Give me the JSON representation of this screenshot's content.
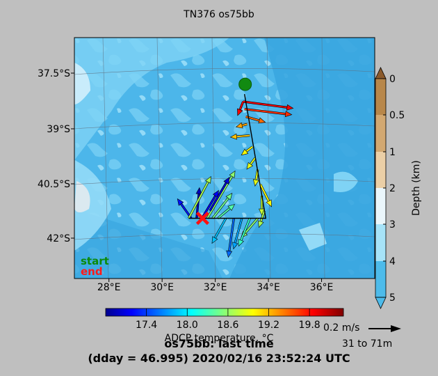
{
  "title": "TN376 os75bb",
  "chart_data": {
    "type": "map-vector",
    "map": {
      "lon_ticks": [
        "28°E",
        "30°E",
        "32°E",
        "34°E",
        "36°E"
      ],
      "lat_ticks": [
        "37.5°S",
        "39°S",
        "40.5°S",
        "42°S"
      ],
      "xlim": [
        26.7,
        38.0
      ],
      "ylim": [
        -43.0,
        -36.6
      ]
    },
    "start_label": "start",
    "end_label": "end",
    "start_color": "#008000",
    "end_color": "#ff0000",
    "track": [
      [
        33.1,
        -38.1
      ],
      [
        33.9,
        -41.4
      ],
      [
        31.0,
        -41.4
      ]
    ],
    "vectors": [
      {
        "lon": 33.05,
        "lat": -38.3,
        "u": 0.9,
        "v": -0.12,
        "temp": 19.9
      },
      {
        "lon": 33.05,
        "lat": -38.3,
        "u": -0.1,
        "v": -0.25,
        "temp": 19.9
      },
      {
        "lon": 33.1,
        "lat": -38.5,
        "u": 0.85,
        "v": -0.1,
        "temp": 19.7
      },
      {
        "lon": 33.15,
        "lat": -38.7,
        "u": 0.35,
        "v": -0.1,
        "temp": 19.5
      },
      {
        "lon": 33.2,
        "lat": -38.9,
        "u": -0.2,
        "v": -0.05,
        "temp": 19.3
      },
      {
        "lon": 33.3,
        "lat": -39.2,
        "u": -0.35,
        "v": -0.03,
        "temp": 19.2
      },
      {
        "lon": 33.4,
        "lat": -39.5,
        "u": -0.2,
        "v": -0.15,
        "temp": 19.0
      },
      {
        "lon": 33.5,
        "lat": -39.8,
        "u": -0.15,
        "v": -0.2,
        "temp": 18.9
      },
      {
        "lon": 33.6,
        "lat": -40.1,
        "u": -0.05,
        "v": -0.3,
        "temp": 18.9
      },
      {
        "lon": 33.7,
        "lat": -40.5,
        "u": 0.2,
        "v": -0.4,
        "temp": 19.0
      },
      {
        "lon": 33.75,
        "lat": -40.8,
        "u": 0.0,
        "v": -0.35,
        "temp": 18.8
      },
      {
        "lon": 33.85,
        "lat": -41.2,
        "u": -0.1,
        "v": -0.3,
        "temp": 18.7
      },
      {
        "lon": 33.6,
        "lat": -41.4,
        "u": -0.3,
        "v": -0.35,
        "temp": 18.6
      },
      {
        "lon": 33.3,
        "lat": -41.4,
        "u": -0.2,
        "v": -0.5,
        "temp": 18.3
      },
      {
        "lon": 33.0,
        "lat": -41.4,
        "u": -0.15,
        "v": -0.55,
        "temp": 17.8
      },
      {
        "lon": 32.7,
        "lat": -41.4,
        "u": -0.1,
        "v": -0.7,
        "temp": 17.6
      },
      {
        "lon": 32.4,
        "lat": -41.4,
        "u": -0.25,
        "v": -0.45,
        "temp": 17.9
      },
      {
        "lon": 32.1,
        "lat": -41.4,
        "u": 0.3,
        "v": 0.25,
        "temp": 18.4
      },
      {
        "lon": 31.9,
        "lat": -41.4,
        "u": 0.35,
        "v": 0.45,
        "temp": 18.5
      },
      {
        "lon": 31.7,
        "lat": -41.4,
        "u": 0.5,
        "v": 0.85,
        "temp": 18.6
      },
      {
        "lon": 31.5,
        "lat": -41.4,
        "u": 0.3,
        "v": 0.5,
        "temp": 17.2
      },
      {
        "lon": 31.3,
        "lat": -41.4,
        "u": 0.05,
        "v": 0.55,
        "temp": 17.0
      },
      {
        "lon": 31.1,
        "lat": -41.4,
        "u": -0.25,
        "v": 0.35,
        "temp": 17.3
      },
      {
        "lon": 31.0,
        "lat": -41.4,
        "u": 0.4,
        "v": 0.75,
        "temp": 18.7
      },
      {
        "lon": 31.8,
        "lat": -41.2,
        "u": 0.35,
        "v": 0.6,
        "temp": 17.1
      }
    ],
    "colorbar_temp": {
      "label": "ADCP temperature, °C",
      "ticks": [
        "17.4",
        "18.0",
        "18.6",
        "19.2",
        "19.8"
      ],
      "range": [
        16.8,
        20.3
      ]
    },
    "colorbar_depth": {
      "label": "Depth (km)",
      "ticks": [
        "0",
        "0.5",
        "1",
        "2",
        "3",
        "4",
        "5"
      ],
      "colors": [
        "#8b5a2b",
        "#b8874a",
        "#d2a871",
        "#ebcfa6",
        "#eaf6fb",
        "#a6e3f8",
        "#4dbbea"
      ]
    },
    "scale": {
      "label": "0.2 m/s",
      "depth_range": "31 to 71m"
    }
  },
  "footer": {
    "line1": "os75bb: last time",
    "line2": "(dday = 46.995) 2020/02/16 23:52:24 UTC"
  }
}
